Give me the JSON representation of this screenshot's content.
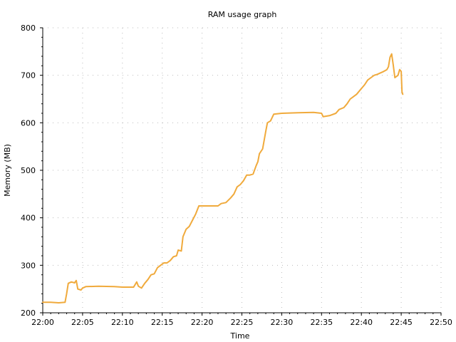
{
  "chart_data": {
    "type": "line",
    "title": "RAM usage graph",
    "xlabel": "Time",
    "ylabel": "Memory (MB)",
    "xlim": [
      "22:00",
      "22:50"
    ],
    "ylim": [
      200,
      800
    ],
    "x_ticks": [
      "22:00",
      "22:05",
      "22:10",
      "22:15",
      "22:20",
      "22:25",
      "22:30",
      "22:35",
      "22:40",
      "22:45",
      "22:50"
    ],
    "y_ticks": [
      200,
      300,
      400,
      500,
      600,
      700,
      800
    ],
    "grid": true,
    "series": [
      {
        "color": "#f0aa3c",
        "points": [
          [
            "22:00",
            222
          ],
          [
            "22:01",
            222
          ],
          [
            "22:02",
            221
          ],
          [
            "22:02:48",
            222
          ],
          [
            "22:03",
            240
          ],
          [
            "22:03:12",
            262
          ],
          [
            "22:03:36",
            265
          ],
          [
            "22:04",
            263
          ],
          [
            "22:04:12",
            268
          ],
          [
            "22:04:24",
            250
          ],
          [
            "22:04:48",
            248
          ],
          [
            "22:05",
            252
          ],
          [
            "22:05:24",
            255
          ],
          [
            "22:07",
            256
          ],
          [
            "22:09",
            255
          ],
          [
            "22:10",
            254
          ],
          [
            "22:11:24",
            254
          ],
          [
            "22:11:48",
            265
          ],
          [
            "22:12",
            256
          ],
          [
            "22:12:24",
            252
          ],
          [
            "22:12:48",
            262
          ],
          [
            "22:13:12",
            270
          ],
          [
            "22:13:36",
            280
          ],
          [
            "22:14",
            282
          ],
          [
            "22:14:24",
            295
          ],
          [
            "22:14:48",
            300
          ],
          [
            "22:15:12",
            305
          ],
          [
            "22:15:36",
            305
          ],
          [
            "22:16",
            310
          ],
          [
            "22:16:24",
            318
          ],
          [
            "22:16:48",
            320
          ],
          [
            "22:17",
            332
          ],
          [
            "22:17:24",
            330
          ],
          [
            "22:17:36",
            360
          ],
          [
            "22:18",
            376
          ],
          [
            "22:18:24",
            382
          ],
          [
            "22:18:48",
            395
          ],
          [
            "22:19:12",
            408
          ],
          [
            "22:19:36",
            425
          ],
          [
            "22:20",
            425
          ],
          [
            "22:22",
            425
          ],
          [
            "22:22:24",
            430
          ],
          [
            "22:23",
            432
          ],
          [
            "22:23:36",
            442
          ],
          [
            "22:24",
            450
          ],
          [
            "22:24:24",
            465
          ],
          [
            "22:24:48",
            470
          ],
          [
            "22:25:12",
            478
          ],
          [
            "22:25:36",
            490
          ],
          [
            "22:26",
            490
          ],
          [
            "22:26:24",
            492
          ],
          [
            "22:26:48",
            510
          ],
          [
            "22:27",
            518
          ],
          [
            "22:27:12",
            535
          ],
          [
            "22:27:36",
            545
          ],
          [
            "22:28",
            582
          ],
          [
            "22:28:12",
            600
          ],
          [
            "22:28:36",
            604
          ],
          [
            "22:29",
            618
          ],
          [
            "22:30",
            620
          ],
          [
            "22:32",
            621
          ],
          [
            "22:34",
            622
          ],
          [
            "22:35",
            620
          ],
          [
            "22:35:12",
            613
          ],
          [
            "22:36",
            615
          ],
          [
            "22:36:48",
            620
          ],
          [
            "22:37:12",
            628
          ],
          [
            "22:37:48",
            632
          ],
          [
            "22:38:12",
            640
          ],
          [
            "22:38:36",
            650
          ],
          [
            "22:39",
            655
          ],
          [
            "22:39:24",
            660
          ],
          [
            "22:40",
            672
          ],
          [
            "22:40:24",
            680
          ],
          [
            "22:40:48",
            690
          ],
          [
            "22:41:12",
            695
          ],
          [
            "22:41:36",
            700
          ],
          [
            "22:42",
            702
          ],
          [
            "22:42:24",
            705
          ],
          [
            "22:42:48",
            708
          ],
          [
            "22:43:12",
            712
          ],
          [
            "22:43:24",
            718
          ],
          [
            "22:43:36",
            738
          ],
          [
            "22:43:48",
            745
          ],
          [
            "22:44",
            722
          ],
          [
            "22:44:12",
            695
          ],
          [
            "22:44:36",
            700
          ],
          [
            "22:44:48",
            712
          ],
          [
            "22:45",
            708
          ],
          [
            "22:45:06",
            665
          ],
          [
            "22:45:12",
            660
          ]
        ]
      }
    ]
  }
}
